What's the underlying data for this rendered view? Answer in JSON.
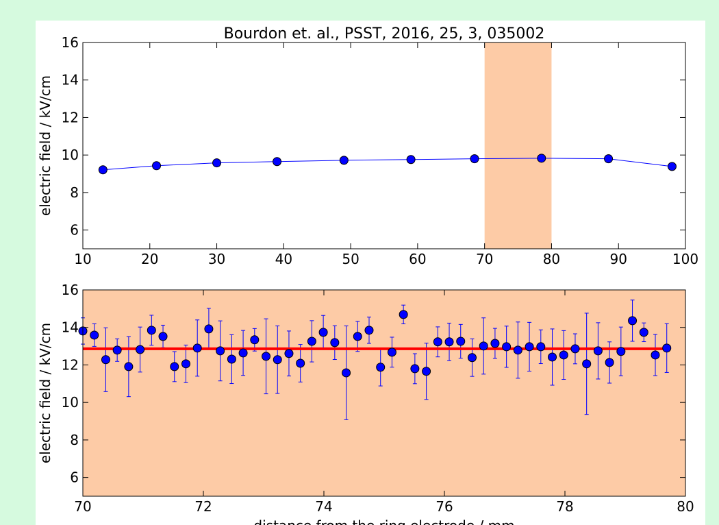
{
  "chart_data": [
    {
      "type": "line",
      "title": "Bourdon et. al., PSST, 2016, 25, 3, 035002",
      "ylabel": "electric field / kV/cm",
      "x": [
        13,
        21,
        30,
        39,
        49,
        59,
        68.5,
        78.5,
        88.5,
        98
      ],
      "values": [
        9.21,
        9.43,
        9.58,
        9.65,
        9.72,
        9.76,
        9.8,
        9.83,
        9.8,
        9.39
      ],
      "color": "#0000ff",
      "highlight": [
        70,
        80
      ],
      "highlight_color": "#fdcba6",
      "xlim": [
        10,
        100
      ],
      "ylim": [
        5,
        16
      ],
      "xticks": [
        10,
        20,
        30,
        40,
        50,
        60,
        70,
        80,
        90,
        100
      ],
      "yticks": [
        6,
        8,
        10,
        12,
        14,
        16
      ]
    },
    {
      "type": "errorbar",
      "ylabel": "electric field / kV/cm",
      "xlabel": "distance from the ring electrode / mm",
      "x": [
        70.0,
        70.19,
        70.38,
        70.57,
        70.76,
        70.95,
        71.14,
        71.33,
        71.52,
        71.71,
        71.9,
        72.09,
        72.28,
        72.47,
        72.66,
        72.85,
        73.04,
        73.23,
        73.42,
        73.61,
        73.8,
        73.99,
        74.18,
        74.37,
        74.56,
        74.75,
        74.94,
        75.13,
        75.32,
        75.51,
        75.7,
        75.89,
        76.08,
        76.27,
        76.46,
        76.65,
        76.84,
        77.03,
        77.22,
        77.41,
        77.6,
        77.79,
        77.98,
        78.17,
        78.36,
        78.55,
        78.74,
        78.93,
        79.12,
        79.31,
        79.5,
        79.69
      ],
      "values": [
        13.81,
        13.59,
        12.28,
        12.79,
        11.91,
        12.82,
        13.85,
        13.52,
        11.91,
        12.06,
        12.9,
        13.92,
        12.75,
        12.31,
        12.64,
        13.34,
        12.46,
        12.28,
        12.61,
        12.09,
        13.26,
        13.74,
        13.19,
        11.58,
        13.52,
        13.85,
        11.88,
        12.68,
        14.69,
        11.8,
        11.66,
        13.23,
        13.23,
        13.26,
        12.39,
        13.01,
        13.15,
        12.97,
        12.79,
        12.97,
        12.97,
        12.42,
        12.53,
        12.86,
        12.06,
        12.75,
        12.13,
        12.72,
        14.36,
        13.74,
        12.53,
        12.9
      ],
      "errors": [
        0.7,
        0.6,
        1.7,
        0.6,
        1.6,
        1.2,
        0.8,
        0.6,
        0.8,
        1.0,
        1.5,
        1.1,
        1.6,
        1.3,
        1.2,
        0.6,
        2.0,
        1.8,
        1.2,
        1.0,
        1.1,
        0.9,
        0.9,
        2.5,
        0.8,
        0.7,
        1.0,
        0.8,
        0.5,
        0.8,
        1.5,
        0.8,
        1.0,
        0.9,
        1.0,
        1.5,
        0.8,
        1.1,
        1.5,
        1.3,
        0.9,
        1.5,
        1.3,
        0.8,
        2.7,
        1.5,
        1.1,
        1.3,
        1.1,
        0.5,
        1.1,
        1.3
      ],
      "color": "#0000ff",
      "mean": 12.86,
      "mean_color": "#ff0000",
      "background": "#fdcba6",
      "xlim": [
        70,
        80
      ],
      "ylim": [
        5,
        16
      ],
      "xticks": [
        70,
        72,
        74,
        76,
        78,
        80
      ],
      "yticks": [
        6,
        8,
        10,
        12,
        14,
        16
      ]
    }
  ]
}
